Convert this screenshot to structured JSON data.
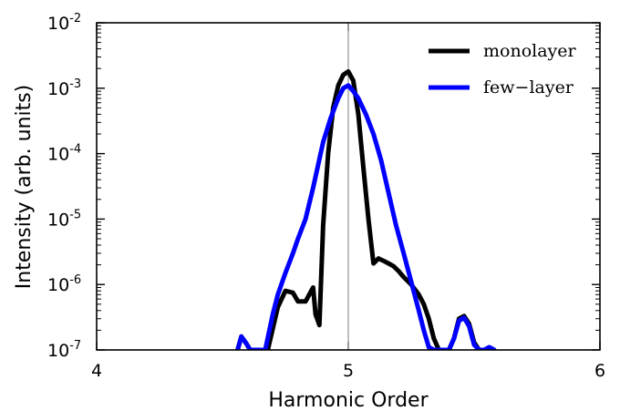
{
  "chart_data": {
    "type": "line",
    "xlabel": "Harmonic Order",
    "ylabel": "Intensity (arb. units)",
    "xlim": [
      4,
      6
    ],
    "ylim": [
      1e-07,
      0.01
    ],
    "yscale": "log",
    "x_ticks": [
      {
        "value": 4,
        "label": "4"
      },
      {
        "value": 5,
        "label": "5"
      },
      {
        "value": 6,
        "label": "6"
      }
    ],
    "y_ticks": [
      {
        "value": 1e-07,
        "base": "10",
        "exp": "-7"
      },
      {
        "value": 1e-06,
        "base": "10",
        "exp": "-6"
      },
      {
        "value": 1e-05,
        "base": "10",
        "exp": "-5"
      },
      {
        "value": 0.0001,
        "base": "10",
        "exp": "-4"
      },
      {
        "value": 0.001,
        "base": "10",
        "exp": "-3"
      },
      {
        "value": 0.01,
        "base": "10",
        "exp": "-2"
      }
    ],
    "vline": 5.0,
    "legend": {
      "position": "top-right"
    },
    "series": [
      {
        "name": "monolayer",
        "color": "#000000",
        "x": [
          4.56,
          4.575,
          4.595,
          4.61,
          4.65,
          4.68,
          4.72,
          4.75,
          4.78,
          4.8,
          4.83,
          4.86,
          4.87,
          4.885,
          4.9,
          4.92,
          4.94,
          4.96,
          4.98,
          5.0,
          5.02,
          5.04,
          5.06,
          5.08,
          5.1,
          5.12,
          5.14,
          5.16,
          5.18,
          5.2,
          5.22,
          5.25,
          5.28,
          5.3,
          5.32,
          5.34,
          5.36,
          5.38,
          5.4,
          5.42,
          5.44,
          5.46,
          5.48,
          5.5,
          5.52
        ],
        "y": [
          1e-07,
          1.6e-07,
          1.25e-07,
          1e-07,
          1e-07,
          1e-07,
          4.5e-07,
          8e-07,
          7.5e-07,
          5.5e-07,
          5.5e-07,
          9e-07,
          3.5e-07,
          2.4e-07,
          8e-06,
          0.0001,
          0.0005,
          0.0011,
          0.0016,
          0.0018,
          0.0013,
          0.0004,
          6e-05,
          1e-05,
          2.1e-06,
          2.5e-06,
          2.3e-06,
          2.1e-06,
          1.9e-06,
          1.6e-06,
          1.3e-06,
          1e-06,
          7e-07,
          5e-07,
          3e-07,
          1.5e-07,
          1e-07,
          1e-07,
          1e-07,
          1.5e-07,
          3e-07,
          3.3e-07,
          2.5e-07,
          1.3e-07,
          1e-07
        ]
      },
      {
        "name": "few−layer",
        "color": "#0000ff",
        "x": [
          4.56,
          4.575,
          4.595,
          4.61,
          4.67,
          4.7,
          4.72,
          4.75,
          4.78,
          4.8,
          4.83,
          4.86,
          4.9,
          4.93,
          4.96,
          4.98,
          5.0,
          5.02,
          5.04,
          5.07,
          5.1,
          5.13,
          5.16,
          5.19,
          5.22,
          5.25,
          5.28,
          5.3,
          5.32,
          5.34,
          5.36,
          5.4,
          5.42,
          5.44,
          5.46,
          5.48,
          5.5,
          5.52,
          5.54,
          5.56,
          5.58
        ],
        "y": [
          1e-07,
          1.6e-07,
          1.25e-07,
          1e-07,
          1e-07,
          3.5e-07,
          7e-07,
          1.5e-06,
          3e-06,
          5e-06,
          1e-05,
          3e-05,
          0.00015,
          0.00035,
          0.0007,
          0.001,
          0.0011,
          0.0009,
          0.0007,
          0.0004,
          0.0002,
          8e-05,
          2.5e-05,
          8e-06,
          3e-06,
          1.1e-06,
          4e-07,
          2e-07,
          1.1e-07,
          1e-07,
          1e-07,
          1e-07,
          1.5e-07,
          2.8e-07,
          3.1e-07,
          2.3e-07,
          1.2e-07,
          1e-07,
          1e-07,
          1.1e-07,
          1e-07
        ]
      }
    ]
  }
}
